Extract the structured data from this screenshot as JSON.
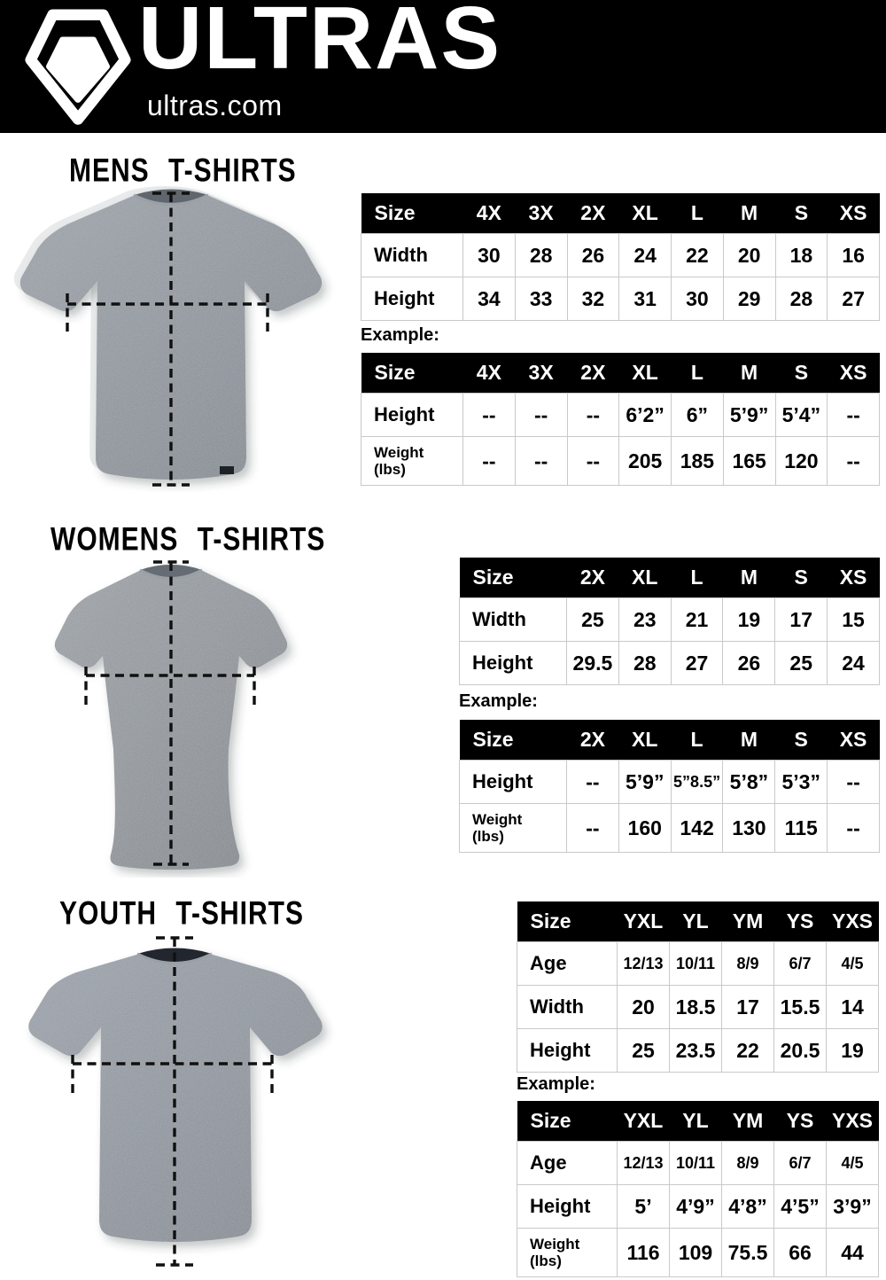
{
  "header": {
    "brand": "ULTRAS",
    "domain": "ultras.com",
    "logo_icon": "pentagon-crest-icon",
    "bg_color": "#000000",
    "text_color": "#ffffff"
  },
  "colors": {
    "table_header_bg": "#000000",
    "table_header_text": "#ffffff",
    "table_border": "#c9c9c9",
    "shirt_gray": "#8e949b",
    "page_bg": "#ffffff",
    "text": "#000000"
  },
  "sections": [
    {
      "id": "mens",
      "title": "MENS T-SHIRTS",
      "shirt_icon": "mens-tshirt-measurement-diagram",
      "example_label": "Example:",
      "size_table": {
        "columns": [
          "Size",
          "4X",
          "3X",
          "2X",
          "XL",
          "L",
          "M",
          "S",
          "XS"
        ],
        "rows": [
          {
            "label": "Width",
            "values": [
              "30",
              "28",
              "26",
              "24",
              "22",
              "20",
              "18",
              "16"
            ]
          },
          {
            "label": "Height",
            "values": [
              "34",
              "33",
              "32",
              "31",
              "30",
              "29",
              "28",
              "27"
            ]
          }
        ]
      },
      "example_table": {
        "columns": [
          "Size",
          "4X",
          "3X",
          "2X",
          "XL",
          "L",
          "M",
          "S",
          "XS"
        ],
        "rows": [
          {
            "label": "Height",
            "values": [
              "--",
              "--",
              "--",
              "6’2”",
              "6”",
              "5’9”",
              "5’4”",
              "--"
            ]
          },
          {
            "label": "Weight\n(lbs)",
            "values": [
              "--",
              "--",
              "--",
              "205",
              "185",
              "165",
              "120",
              "--"
            ]
          }
        ]
      }
    },
    {
      "id": "womens",
      "title": "WOMENS T-SHIRTS",
      "shirt_icon": "womens-tshirt-measurement-diagram",
      "example_label": "Example:",
      "size_table": {
        "columns": [
          "Size",
          "2X",
          "XL",
          "L",
          "M",
          "S",
          "XS"
        ],
        "rows": [
          {
            "label": "Width",
            "values": [
              "25",
              "23",
              "21",
              "19",
              "17",
              "15"
            ]
          },
          {
            "label": "Height",
            "values": [
              "29.5",
              "28",
              "27",
              "26",
              "25",
              "24"
            ]
          }
        ]
      },
      "example_table": {
        "columns": [
          "Size",
          "2X",
          "XL",
          "L",
          "M",
          "S",
          "XS"
        ],
        "rows": [
          {
            "label": "Height",
            "values": [
              "--",
              "5’9”",
              "5”8.5”",
              "5’8”",
              "5’3”",
              "--"
            ]
          },
          {
            "label": "Weight\n(lbs)",
            "values": [
              "--",
              "160",
              "142",
              "130",
              "115",
              "--"
            ]
          }
        ]
      }
    },
    {
      "id": "youth",
      "title": "YOUTH T-SHIRTS",
      "shirt_icon": "youth-tshirt-measurement-diagram",
      "example_label": "Example:",
      "size_table": {
        "columns": [
          "Size",
          "YXL",
          "YL",
          "YM",
          "YS",
          "YXS"
        ],
        "rows": [
          {
            "label": "Age",
            "small": true,
            "values": [
              "12/13",
              "10/11",
              "8/9",
              "6/7",
              "4/5"
            ]
          },
          {
            "label": "Width",
            "values": [
              "20",
              "18.5",
              "17",
              "15.5",
              "14"
            ]
          },
          {
            "label": "Height",
            "values": [
              "25",
              "23.5",
              "22",
              "20.5",
              "19"
            ]
          }
        ]
      },
      "example_table": {
        "columns": [
          "Size",
          "YXL",
          "YL",
          "YM",
          "YS",
          "YXS"
        ],
        "rows": [
          {
            "label": "Age",
            "small": true,
            "values": [
              "12/13",
              "10/11",
              "8/9",
              "6/7",
              "4/5"
            ]
          },
          {
            "label": "Height",
            "values": [
              "5’",
              "4’9”",
              "4’8”",
              "4’5”",
              "3’9”"
            ]
          },
          {
            "label": "Weight\n(lbs)",
            "values": [
              "116",
              "109",
              "75.5",
              "66",
              "44"
            ]
          }
        ]
      }
    }
  ]
}
